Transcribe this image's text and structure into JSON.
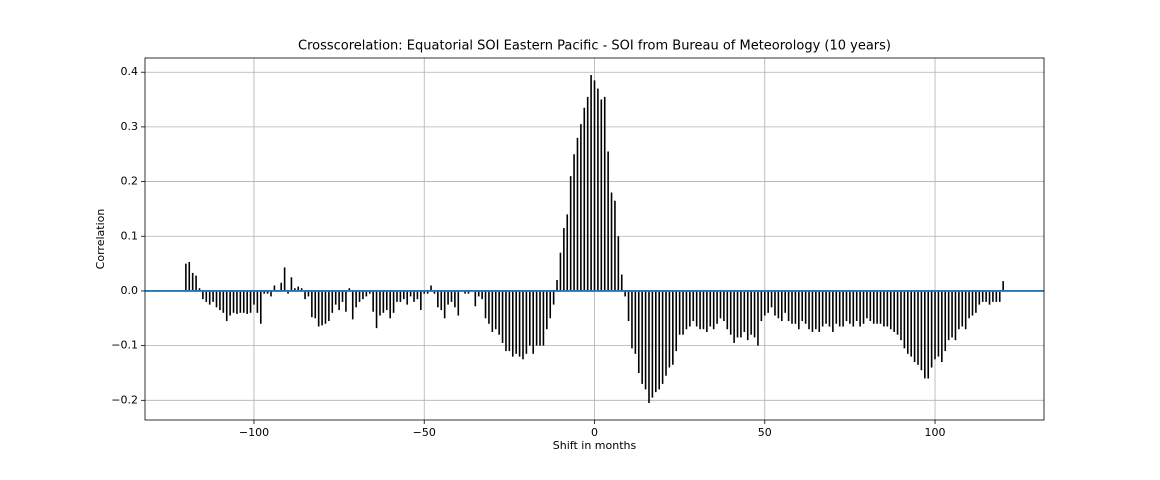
{
  "chart_data": {
    "type": "xcorr",
    "title": "Crosscorelation: Equatorial SOI Eastern Pacific - SOI from Bureau of Meteorology (10 years)",
    "xlabel": "Shift in months",
    "ylabel": "Correlation",
    "color": "#000000",
    "baseline_color": "#1f77b4",
    "grid": true,
    "xlim": [
      -132,
      132
    ],
    "ylim": [
      -0.236,
      0.426
    ],
    "xticks": [
      {
        "value": -100,
        "label": "−100"
      },
      {
        "value": -50,
        "label": "−50"
      },
      0,
      50,
      100
    ],
    "yticks": [
      {
        "value": -0.2,
        "label": "−0.2"
      },
      {
        "value": -0.1,
        "label": "−0.1"
      },
      {
        "value": 0,
        "label": "0.0"
      },
      0.1,
      0.2,
      0.3,
      0.4
    ],
    "x": [
      -120,
      -119,
      -118,
      -117,
      -116,
      -115,
      -114,
      -113,
      -112,
      -111,
      -110,
      -109,
      -108,
      -107,
      -106,
      -105,
      -104,
      -103,
      -102,
      -101,
      -100,
      -99,
      -98,
      -97,
      -96,
      -95,
      -94,
      -93,
      -92,
      -91,
      -90,
      -89,
      -88,
      -87,
      -86,
      -85,
      -84,
      -83,
      -82,
      -81,
      -80,
      -79,
      -78,
      -77,
      -76,
      -75,
      -74,
      -73,
      -72,
      -71,
      -70,
      -69,
      -68,
      -67,
      -66,
      -65,
      -64,
      -63,
      -62,
      -61,
      -60,
      -59,
      -58,
      -57,
      -56,
      -55,
      -54,
      -53,
      -52,
      -51,
      -50,
      -49,
      -48,
      -47,
      -46,
      -45,
      -44,
      -43,
      -42,
      -41,
      -40,
      -39,
      -38,
      -37,
      -36,
      -35,
      -34,
      -33,
      -32,
      -31,
      -30,
      -29,
      -28,
      -27,
      -26,
      -25,
      -24,
      -23,
      -22,
      -21,
      -20,
      -19,
      -18,
      -17,
      -16,
      -15,
      -14,
      -13,
      -12,
      -11,
      -10,
      -9,
      -8,
      -7,
      -6,
      -5,
      -4,
      -3,
      -2,
      -1,
      0,
      1,
      2,
      3,
      4,
      5,
      6,
      7,
      8,
      9,
      10,
      11,
      12,
      13,
      14,
      15,
      16,
      17,
      18,
      19,
      20,
      21,
      22,
      23,
      24,
      25,
      26,
      27,
      28,
      29,
      30,
      31,
      32,
      33,
      34,
      35,
      36,
      37,
      38,
      39,
      40,
      41,
      42,
      43,
      44,
      45,
      46,
      47,
      48,
      49,
      50,
      51,
      52,
      53,
      54,
      55,
      56,
      57,
      58,
      59,
      60,
      61,
      62,
      63,
      64,
      65,
      66,
      67,
      68,
      69,
      70,
      71,
      72,
      73,
      74,
      75,
      76,
      77,
      78,
      79,
      80,
      81,
      82,
      83,
      84,
      85,
      86,
      87,
      88,
      89,
      90,
      91,
      92,
      93,
      94,
      95,
      96,
      97,
      98,
      99,
      100,
      101,
      102,
      103,
      104,
      105,
      106,
      107,
      108,
      109,
      110,
      111,
      112,
      113,
      114,
      115,
      116,
      117,
      118,
      119,
      120
    ],
    "values": [
      0.05,
      0.053,
      0.033,
      0.028,
      0.005,
      -0.015,
      -0.02,
      -0.025,
      -0.02,
      -0.03,
      -0.035,
      -0.04,
      -0.055,
      -0.045,
      -0.04,
      -0.042,
      -0.04,
      -0.04,
      -0.042,
      -0.04,
      -0.025,
      -0.04,
      -0.06,
      -0.005,
      -0.005,
      -0.01,
      0.01,
      0,
      0.015,
      0.043,
      -0.005,
      0.025,
      0.005,
      0.008,
      0.005,
      -0.015,
      -0.01,
      -0.048,
      -0.05,
      -0.065,
      -0.063,
      -0.06,
      -0.055,
      -0.04,
      -0.025,
      -0.035,
      -0.02,
      -0.038,
      0.005,
      -0.052,
      -0.03,
      -0.02,
      -0.015,
      -0.01,
      -0.005,
      -0.038,
      -0.068,
      -0.045,
      -0.04,
      -0.035,
      -0.05,
      -0.04,
      -0.02,
      -0.02,
      -0.015,
      -0.025,
      -0.01,
      -0.02,
      -0.015,
      -0.035,
      -0.005,
      -0.005,
      0.01,
      -0.005,
      -0.03,
      -0.035,
      -0.05,
      -0.025,
      -0.02,
      -0.03,
      -0.045,
      0,
      -0.005,
      -0.005,
      0,
      -0.028,
      -0.01,
      -0.015,
      -0.05,
      -0.06,
      -0.075,
      -0.07,
      -0.08,
      -0.095,
      -0.11,
      -0.11,
      -0.12,
      -0.115,
      -0.12,
      -0.125,
      -0.115,
      -0.1,
      -0.115,
      -0.1,
      -0.1,
      -0.1,
      -0.07,
      -0.05,
      -0.025,
      0.02,
      0.07,
      0.115,
      0.14,
      0.21,
      0.25,
      0.28,
      0.305,
      0.335,
      0.355,
      0.395,
      0.385,
      0.37,
      0.35,
      0.355,
      0.255,
      0.18,
      0.165,
      0.1,
      0.03,
      -0.01,
      -0.055,
      -0.105,
      -0.115,
      -0.15,
      -0.17,
      -0.18,
      -0.205,
      -0.195,
      -0.185,
      -0.18,
      -0.17,
      -0.155,
      -0.14,
      -0.135,
      -0.11,
      -0.08,
      -0.08,
      -0.07,
      -0.065,
      -0.055,
      -0.065,
      -0.07,
      -0.07,
      -0.075,
      -0.065,
      -0.07,
      -0.06,
      -0.05,
      -0.055,
      -0.07,
      -0.08,
      -0.095,
      -0.085,
      -0.085,
      -0.075,
      -0.09,
      -0.08,
      -0.085,
      -0.1,
      -0.055,
      -0.045,
      -0.04,
      -0.03,
      -0.045,
      -0.05,
      -0.055,
      -0.04,
      -0.055,
      -0.06,
      -0.06,
      -0.07,
      -0.055,
      -0.06,
      -0.07,
      -0.075,
      -0.07,
      -0.075,
      -0.065,
      -0.06,
      -0.065,
      -0.075,
      -0.06,
      -0.065,
      -0.065,
      -0.055,
      -0.06,
      -0.065,
      -0.055,
      -0.065,
      -0.06,
      -0.05,
      -0.055,
      -0.06,
      -0.06,
      -0.06,
      -0.065,
      -0.065,
      -0.07,
      -0.075,
      -0.08,
      -0.09,
      -0.105,
      -0.115,
      -0.12,
      -0.13,
      -0.135,
      -0.145,
      -0.16,
      -0.16,
      -0.14,
      -0.125,
      -0.12,
      -0.13,
      -0.11,
      -0.09,
      -0.085,
      -0.09,
      -0.07,
      -0.065,
      -0.07,
      -0.05,
      -0.045,
      -0.04,
      -0.025,
      -0.02,
      -0.02,
      -0.025,
      -0.02,
      -0.02,
      -0.02,
      0.018
    ]
  }
}
